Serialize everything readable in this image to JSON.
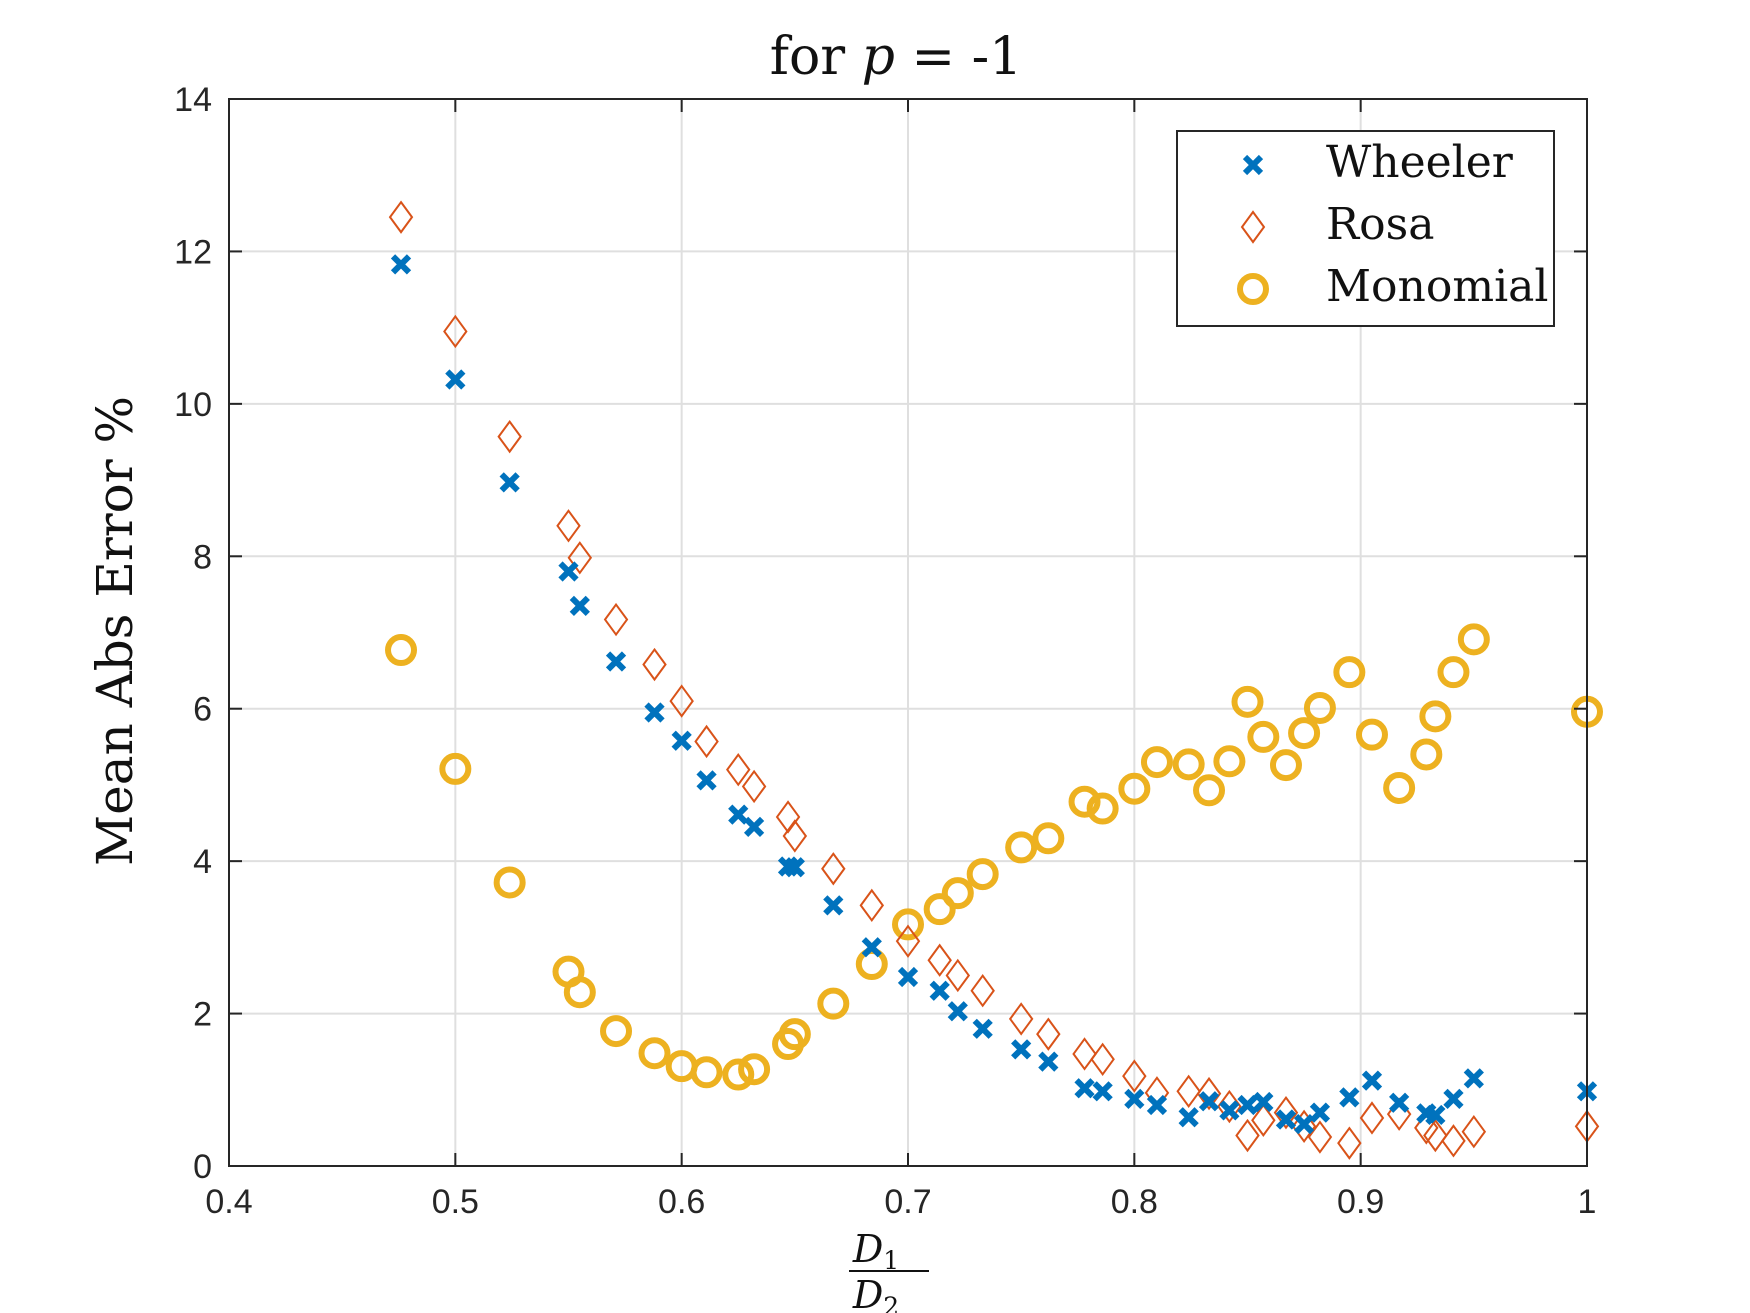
{
  "chart_data": {
    "type": "scatter",
    "title": "for p = -1",
    "title_prefix": "for ",
    "title_var": "p",
    "title_suffix": " = -1",
    "ylabel": "Mean Abs Error %",
    "xlabel": "D1/D2",
    "xlabel_num_main": "D",
    "xlabel_num_sub": "1",
    "xlabel_den_main": "D",
    "xlabel_den_sub": "2",
    "xlim": [
      0.4,
      1.0
    ],
    "ylim": [
      0,
      14
    ],
    "xticks": [
      "0.4",
      "0.5",
      "0.6",
      "0.7",
      "0.8",
      "0.9",
      "1"
    ],
    "yticks": [
      "0",
      "2",
      "4",
      "6",
      "8",
      "10",
      "12",
      "14"
    ],
    "grid": true,
    "legend_position": "top-right",
    "colors": {
      "wheeler": "#0072BD",
      "rosa": "#D95319",
      "monomial": "#EDB120",
      "axis": "#262626",
      "grid": "#dfdfdf"
    },
    "series": [
      {
        "name": "Wheeler",
        "marker": "x",
        "points": [
          [
            0.476,
            11.83
          ],
          [
            0.5,
            10.32
          ],
          [
            0.524,
            8.97
          ],
          [
            0.55,
            7.8
          ],
          [
            0.555,
            7.35
          ],
          [
            0.571,
            6.62
          ],
          [
            0.588,
            5.95
          ],
          [
            0.6,
            5.58
          ],
          [
            0.611,
            5.06
          ],
          [
            0.625,
            4.61
          ],
          [
            0.632,
            4.45
          ],
          [
            0.647,
            3.93
          ],
          [
            0.65,
            3.92
          ],
          [
            0.667,
            3.42
          ],
          [
            0.684,
            2.87
          ],
          [
            0.7,
            2.48
          ],
          [
            0.714,
            2.3
          ],
          [
            0.722,
            2.03
          ],
          [
            0.733,
            1.8
          ],
          [
            0.75,
            1.53
          ],
          [
            0.762,
            1.37
          ],
          [
            0.778,
            1.02
          ],
          [
            0.786,
            0.98
          ],
          [
            0.8,
            0.88
          ],
          [
            0.81,
            0.8
          ],
          [
            0.824,
            0.64
          ],
          [
            0.833,
            0.85
          ],
          [
            0.842,
            0.73
          ],
          [
            0.85,
            0.8
          ],
          [
            0.857,
            0.84
          ],
          [
            0.867,
            0.61
          ],
          [
            0.875,
            0.55
          ],
          [
            0.882,
            0.7
          ],
          [
            0.895,
            0.9
          ],
          [
            0.905,
            1.12
          ],
          [
            0.917,
            0.83
          ],
          [
            0.929,
            0.69
          ],
          [
            0.933,
            0.67
          ],
          [
            0.941,
            0.88
          ],
          [
            0.95,
            1.15
          ],
          [
            1.0,
            0.98
          ]
        ]
      },
      {
        "name": "Rosa",
        "marker": "diamond",
        "points": [
          [
            0.476,
            12.45
          ],
          [
            0.5,
            10.95
          ],
          [
            0.524,
            9.57
          ],
          [
            0.55,
            8.4
          ],
          [
            0.555,
            7.98
          ],
          [
            0.571,
            7.17
          ],
          [
            0.588,
            6.58
          ],
          [
            0.6,
            6.1
          ],
          [
            0.611,
            5.57
          ],
          [
            0.625,
            5.2
          ],
          [
            0.632,
            4.98
          ],
          [
            0.647,
            4.58
          ],
          [
            0.65,
            4.33
          ],
          [
            0.667,
            3.9
          ],
          [
            0.684,
            3.42
          ],
          [
            0.7,
            2.95
          ],
          [
            0.714,
            2.7
          ],
          [
            0.722,
            2.5
          ],
          [
            0.733,
            2.3
          ],
          [
            0.75,
            1.93
          ],
          [
            0.762,
            1.73
          ],
          [
            0.778,
            1.47
          ],
          [
            0.786,
            1.4
          ],
          [
            0.8,
            1.18
          ],
          [
            0.81,
            0.96
          ],
          [
            0.824,
            0.98
          ],
          [
            0.833,
            0.95
          ],
          [
            0.842,
            0.78
          ],
          [
            0.85,
            0.4
          ],
          [
            0.857,
            0.6
          ],
          [
            0.867,
            0.7
          ],
          [
            0.875,
            0.52
          ],
          [
            0.882,
            0.38
          ],
          [
            0.895,
            0.3
          ],
          [
            0.905,
            0.63
          ],
          [
            0.917,
            0.68
          ],
          [
            0.929,
            0.5
          ],
          [
            0.933,
            0.4
          ],
          [
            0.941,
            0.33
          ],
          [
            0.95,
            0.45
          ],
          [
            1.0,
            0.52
          ]
        ]
      },
      {
        "name": "Monomial",
        "marker": "circle",
        "points": [
          [
            0.476,
            6.77
          ],
          [
            0.5,
            5.21
          ],
          [
            0.524,
            3.72
          ],
          [
            0.55,
            2.55
          ],
          [
            0.555,
            2.28
          ],
          [
            0.571,
            1.77
          ],
          [
            0.588,
            1.48
          ],
          [
            0.6,
            1.31
          ],
          [
            0.611,
            1.23
          ],
          [
            0.625,
            1.2
          ],
          [
            0.632,
            1.27
          ],
          [
            0.647,
            1.6
          ],
          [
            0.65,
            1.73
          ],
          [
            0.667,
            2.13
          ],
          [
            0.684,
            2.65
          ],
          [
            0.7,
            3.17
          ],
          [
            0.714,
            3.37
          ],
          [
            0.722,
            3.58
          ],
          [
            0.733,
            3.83
          ],
          [
            0.75,
            4.18
          ],
          [
            0.762,
            4.3
          ],
          [
            0.778,
            4.78
          ],
          [
            0.786,
            4.69
          ],
          [
            0.8,
            4.95
          ],
          [
            0.81,
            5.3
          ],
          [
            0.824,
            5.27
          ],
          [
            0.833,
            4.93
          ],
          [
            0.842,
            5.31
          ],
          [
            0.85,
            6.09
          ],
          [
            0.857,
            5.63
          ],
          [
            0.867,
            5.26
          ],
          [
            0.875,
            5.68
          ],
          [
            0.882,
            6.01
          ],
          [
            0.895,
            6.48
          ],
          [
            0.905,
            5.66
          ],
          [
            0.917,
            4.96
          ],
          [
            0.929,
            5.4
          ],
          [
            0.933,
            5.9
          ],
          [
            0.941,
            6.48
          ],
          [
            0.95,
            6.91
          ],
          [
            1.0,
            5.96
          ]
        ]
      }
    ]
  }
}
